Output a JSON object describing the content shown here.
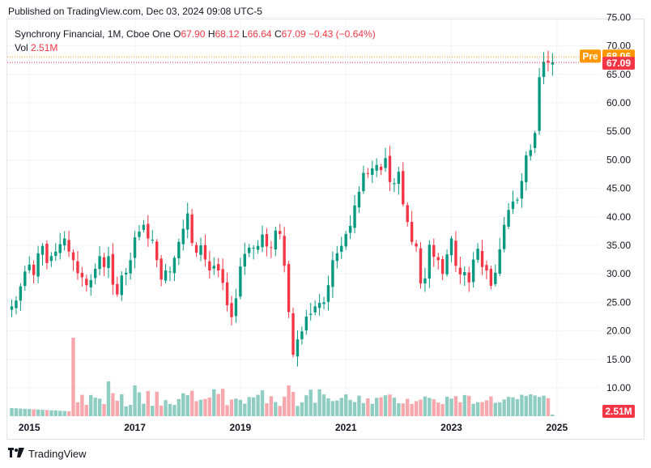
{
  "header": {
    "published_text": "Published on TradingView.com, Dec 03, 2024 09:08 UTC-5"
  },
  "legend": {
    "symbol_line": "Synchrony Financial, 1M, Cboe One",
    "o_label": "O",
    "o_value": "67.90",
    "h_label": "H",
    "h_value": "68.12",
    "l_label": "L",
    "l_value": "66.64",
    "c_label": "C",
    "c_value": "67.09",
    "change": "−0.43 (−0.64%)",
    "vol_label": "Vol",
    "vol_value": "2.51M"
  },
  "badges": {
    "pre_label": "Pre",
    "pre_value": "68.06",
    "pre_color": "#ff9800",
    "last_value": "67.09",
    "last_color": "#f23645",
    "vol_value": "2.51M"
  },
  "footer": {
    "brand": "TradingView"
  },
  "colors": {
    "up": "#089981",
    "down": "#f23645",
    "vol_up": "#8fcdc3",
    "vol_down": "#f7a8ad",
    "grid": "#f0f3fa",
    "axis_text": "#131722"
  },
  "chart_data": {
    "type": "candlestick",
    "interval": "1M",
    "ylim": [
      6.5,
      76
    ],
    "y_ticks": [
      "75.00",
      "70.00",
      "65.00",
      "60.00",
      "55.00",
      "50.00",
      "45.00",
      "40.00",
      "35.00",
      "30.00",
      "25.00",
      "20.00",
      "15.00",
      "10.00"
    ],
    "x_ticks": [
      {
        "label": "2015",
        "index": 4
      },
      {
        "label": "2017",
        "index": 28
      },
      {
        "label": "2019",
        "index": 52
      },
      {
        "label": "2021",
        "index": 76
      },
      {
        "label": "2023",
        "index": 100
      },
      {
        "label": "2025",
        "index": 124
      }
    ],
    "candles_close": [
      24.3,
      25.3,
      27.8,
      30.4,
      31.6,
      29.8,
      33.6,
      34.9,
      31.9,
      33.1,
      33.9,
      35.2,
      36.2,
      33.9,
      32.4,
      30.1,
      29.4,
      28.0,
      28.9,
      30.9,
      33.1,
      31.2,
      33.1,
      28.1,
      26.4,
      29.7,
      30.2,
      32.4,
      36.4,
      37.4,
      38.6,
      36.2,
      36.0,
      32.4,
      29.0,
      30.6,
      30.4,
      32.8,
      35.6,
      37.9,
      40.6,
      35.4,
      33.7,
      35.0,
      32.5,
      30.6,
      31.4,
      30.6,
      28.4,
      24.5,
      22.4,
      25.7,
      31.3,
      33.5,
      34.6,
      34.6,
      34.9,
      36.9,
      34.8,
      34.6,
      37.6,
      37.0,
      31.4,
      23.3,
      15.8,
      18.5,
      19.9,
      22.5,
      23.0,
      24.3,
      24.9,
      25.0,
      28.0,
      32.4,
      33.6,
      34.9,
      37.0,
      38.4,
      42.0,
      44.4,
      47.7,
      47.6,
      48.5,
      49.1,
      48.2,
      50.3,
      46.1,
      45.9,
      47.9,
      42.2,
      39.1,
      35.6,
      34.8,
      28.3,
      29.2,
      35.1,
      33.0,
      32.4,
      30.0,
      33.4,
      36.2,
      31.4,
      29.9,
      30.3,
      28.5,
      32.5,
      34.4,
      31.2,
      30.6,
      27.9,
      30.2,
      34.3,
      38.6,
      41.2,
      42.7,
      43.0,
      46.3,
      50.8,
      51.7,
      54.7,
      64.5,
      67.2,
      67.1,
      67.09
    ],
    "volume_note": "monthly volume bars along bottom; largest spikes near 2016 and early 2020",
    "last_close": 67.09,
    "pre_market": 68.06
  }
}
